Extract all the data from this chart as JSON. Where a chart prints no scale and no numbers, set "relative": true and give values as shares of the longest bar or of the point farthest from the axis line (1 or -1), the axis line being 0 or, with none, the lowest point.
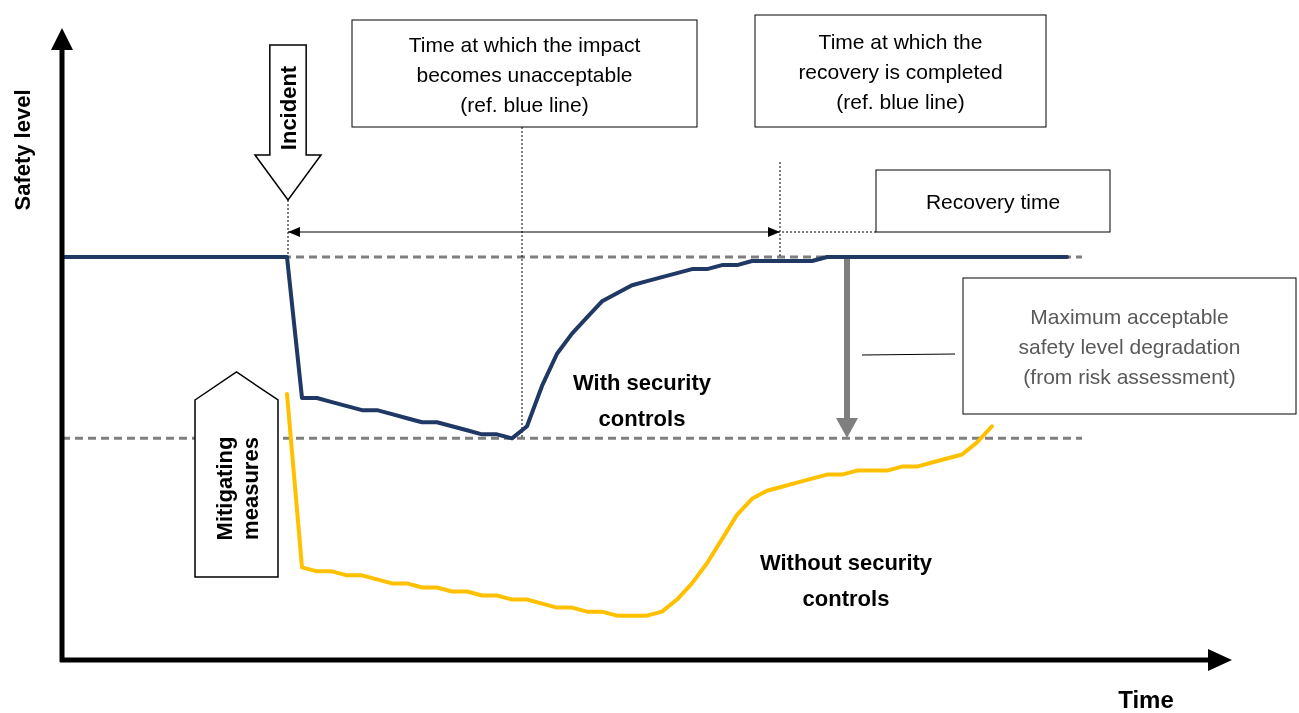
{
  "chart_data": {
    "type": "line",
    "relative": true,
    "xlabel": "Time",
    "ylabel": "Safety level",
    "categories": [
      null,
      null,
      null,
      null,
      null,
      null,
      null,
      null,
      null,
      null,
      null,
      null,
      null,
      null,
      null,
      null,
      null,
      null,
      null,
      null,
      null,
      null,
      null,
      null,
      null,
      null,
      null,
      null,
      null,
      null,
      null,
      null,
      null,
      null,
      null,
      null,
      null,
      null,
      null,
      null,
      null,
      null,
      null,
      null,
      null,
      null,
      null,
      null,
      null,
      null,
      null,
      null,
      null,
      null,
      null,
      null,
      null,
      null,
      null,
      null,
      null,
      null,
      null,
      null,
      null,
      null,
      null,
      null
    ],
    "series": [
      {
        "name": "With security controls",
        "color": "#1f3864",
        "values": [
          1,
          1,
          1,
          1,
          1,
          1,
          1,
          1,
          1,
          1,
          1,
          1,
          1,
          1,
          1,
          1,
          0.65,
          0.65,
          0.64,
          0.63,
          0.62,
          0.62,
          0.61,
          0.6,
          0.59,
          0.59,
          0.58,
          0.57,
          0.56,
          0.56,
          0.55,
          0.58,
          0.68,
          0.76,
          0.81,
          0.85,
          0.89,
          0.91,
          0.93,
          0.94,
          0.95,
          0.96,
          0.97,
          0.97,
          0.98,
          0.98,
          0.99,
          0.99,
          0.99,
          0.99,
          0.99,
          1,
          1,
          1,
          1,
          1,
          1,
          1,
          1,
          1,
          1,
          1,
          1,
          1,
          1,
          1,
          1,
          1
        ]
      },
      {
        "name": "Without security controls",
        "color": "#ffc000",
        "values": [
          null,
          null,
          null,
          null,
          null,
          null,
          null,
          null,
          null,
          null,
          null,
          null,
          null,
          null,
          null,
          0.66,
          0.23,
          0.22,
          0.22,
          0.21,
          0.21,
          0.2,
          0.19,
          0.19,
          0.18,
          0.18,
          0.17,
          0.17,
          0.16,
          0.16,
          0.15,
          0.15,
          0.14,
          0.13,
          0.13,
          0.12,
          0.12,
          0.11,
          0.11,
          0.11,
          0.12,
          0.15,
          0.19,
          0.24,
          0.3,
          0.36,
          0.4,
          0.42,
          0.43,
          0.44,
          0.45,
          0.46,
          0.46,
          0.47,
          0.47,
          0.47,
          0.48,
          0.48,
          0.49,
          0.5,
          0.51,
          0.54,
          0.58,
          null,
          null,
          null,
          null,
          null
        ]
      }
    ],
    "ref_lines": [
      {
        "axis": "y",
        "value": 1,
        "color": "#7f7f7f",
        "line_style": "dashed"
      },
      {
        "axis": "y",
        "value": 0.55,
        "color": "#7f7f7f",
        "line_style": "dashed"
      }
    ],
    "annotations": [
      "Incident",
      "Mitigating measures",
      "Time at which the impact becomes unacceptable (ref. blue line)",
      "Time at which the recovery is completed (ref. blue line)",
      "Recovery time",
      "Maximum acceptable safety level degradation (from risk assessment)"
    ]
  }
}
